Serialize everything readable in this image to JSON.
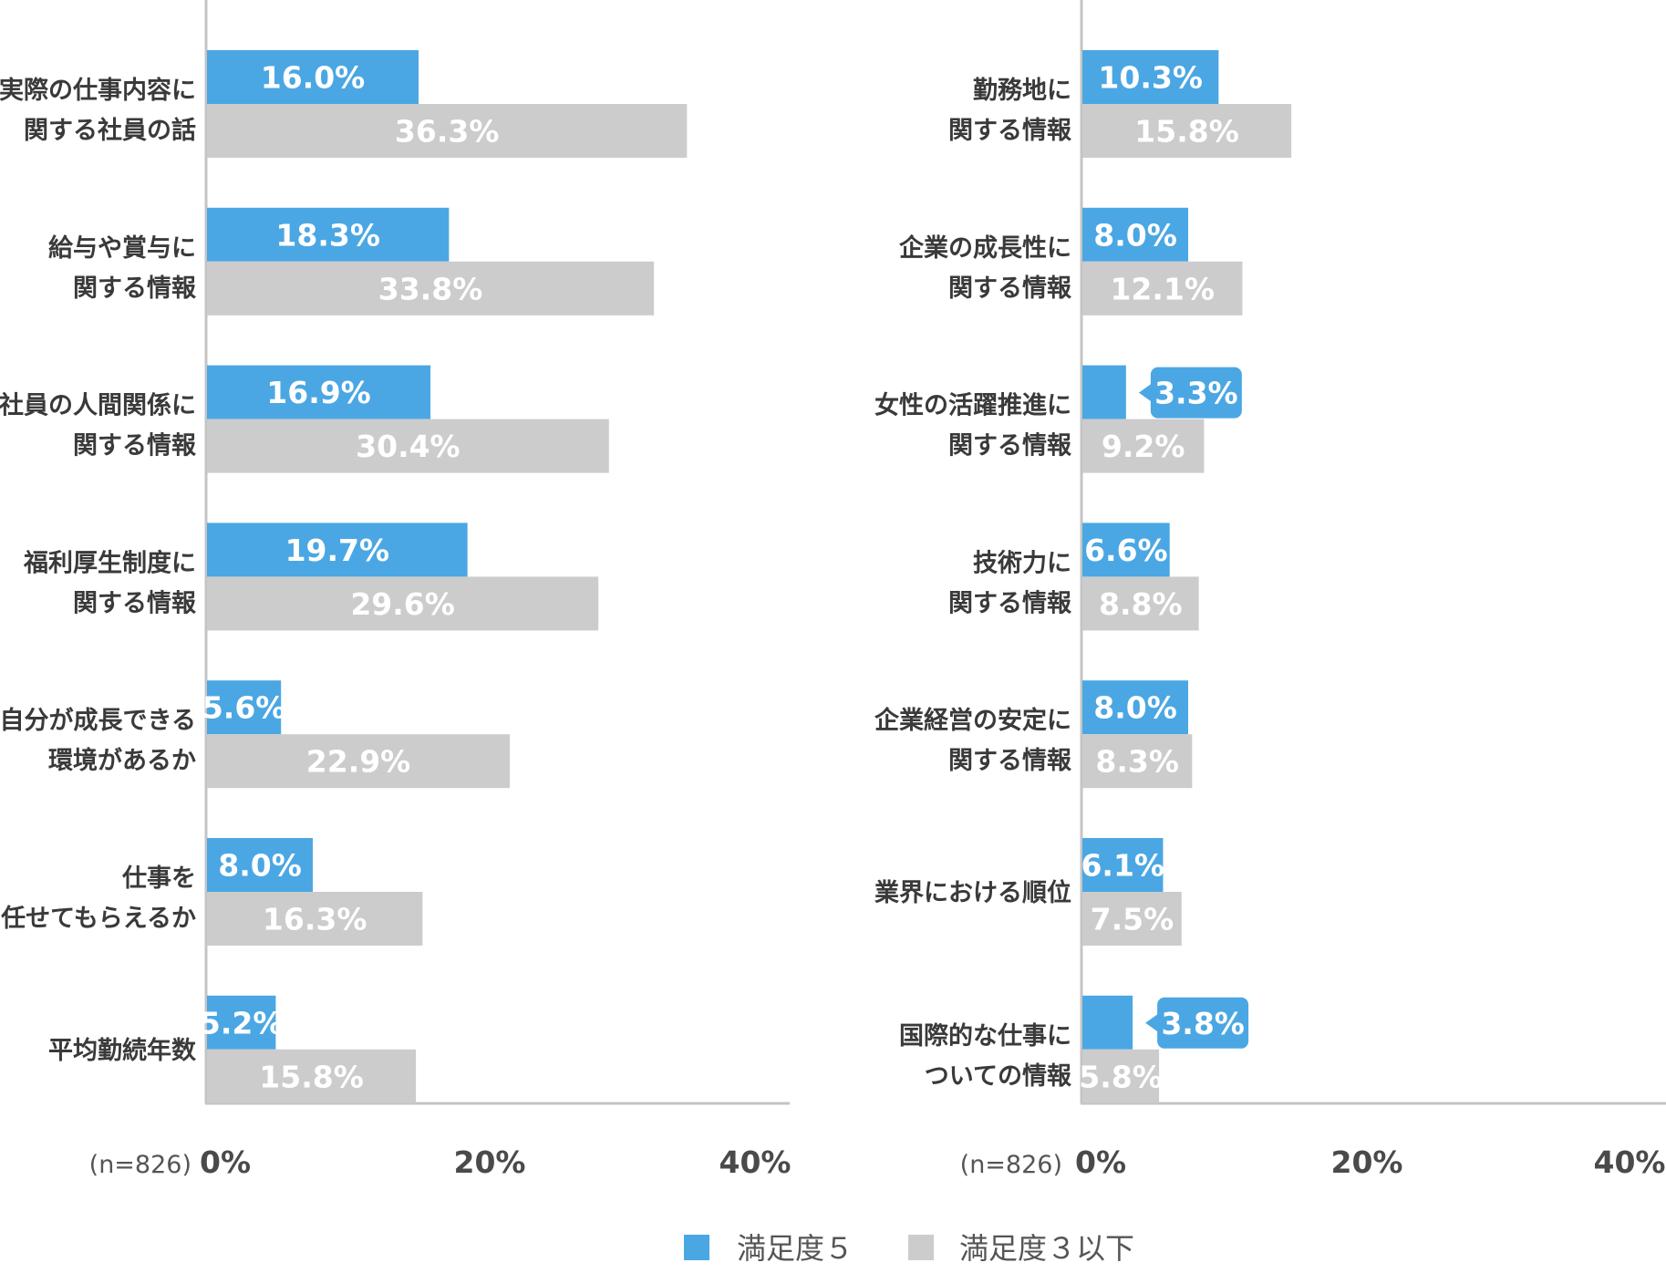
{
  "chart_data": [
    {
      "type": "bar",
      "orientation": "horizontal",
      "sample_size": "(n=826)",
      "categories": [
        [
          "実際の仕事内容に",
          "関する社員の話"
        ],
        [
          "給与や賞与に",
          "関する情報"
        ],
        [
          "社員の人間関係に",
          "関する情報"
        ],
        [
          "福利厚生制度に",
          "関する情報"
        ],
        [
          "自分が成長できる",
          "環境があるか"
        ],
        [
          "仕事を",
          "任せてもらえるか"
        ],
        [
          "平均勤続年数"
        ]
      ],
      "series": [
        {
          "name": "満足度５",
          "values": [
            16.0,
            18.3,
            16.9,
            19.7,
            5.6,
            8.0,
            5.2
          ],
          "labels": [
            "16.0%",
            "18.3%",
            "16.9%",
            "19.7%",
            "5.6%",
            "8.0%",
            "5.2%"
          ]
        },
        {
          "name": "満足度３以下",
          "values": [
            36.3,
            33.8,
            30.4,
            29.6,
            22.9,
            16.3,
            15.8
          ],
          "labels": [
            "36.3%",
            "33.8%",
            "30.4%",
            "29.6%",
            "22.9%",
            "16.3%",
            "15.8%"
          ]
        }
      ],
      "xlim": [
        0,
        40
      ],
      "xticks": [
        "0%",
        "20%",
        "40%"
      ],
      "grid": false
    },
    {
      "type": "bar",
      "orientation": "horizontal",
      "sample_size": "(n=826)",
      "categories": [
        [
          "勤務地に",
          "関する情報"
        ],
        [
          "企業の成長性に",
          "関する情報"
        ],
        [
          "女性の活躍推進に",
          "関する情報"
        ],
        [
          "技術力に",
          "関する情報"
        ],
        [
          "企業経営の安定に",
          "関する情報"
        ],
        [
          "業界における順位"
        ],
        [
          "国際的な仕事に",
          "ついての情報"
        ]
      ],
      "series": [
        {
          "name": "満足度５",
          "values": [
            10.3,
            8.0,
            3.3,
            6.6,
            8.0,
            6.1,
            3.8
          ],
          "labels": [
            "10.3%",
            "8.0%",
            "3.3%",
            "6.6%",
            "8.0%",
            "6.1%",
            "3.8%"
          ]
        },
        {
          "name": "満足度３以下",
          "values": [
            15.8,
            12.1,
            9.2,
            8.8,
            8.3,
            7.5,
            5.8
          ],
          "labels": [
            "15.8%",
            "12.1%",
            "9.2%",
            "8.8%",
            "8.3%",
            "7.5%",
            "5.8%"
          ]
        }
      ],
      "xlim": [
        0,
        40
      ],
      "xticks": [
        "0%",
        "20%",
        "40%"
      ],
      "grid": false
    }
  ],
  "legend": {
    "position": "bottom-center",
    "items": [
      {
        "label": "満足度５",
        "color": "#4ba7e3"
      },
      {
        "label": "満足度３以下",
        "color": "#cccccc"
      }
    ]
  },
  "colors": {
    "satisfied": "#4ba7e3",
    "unsatisfied": "#cccccc",
    "axis": "#c4c4c4"
  }
}
